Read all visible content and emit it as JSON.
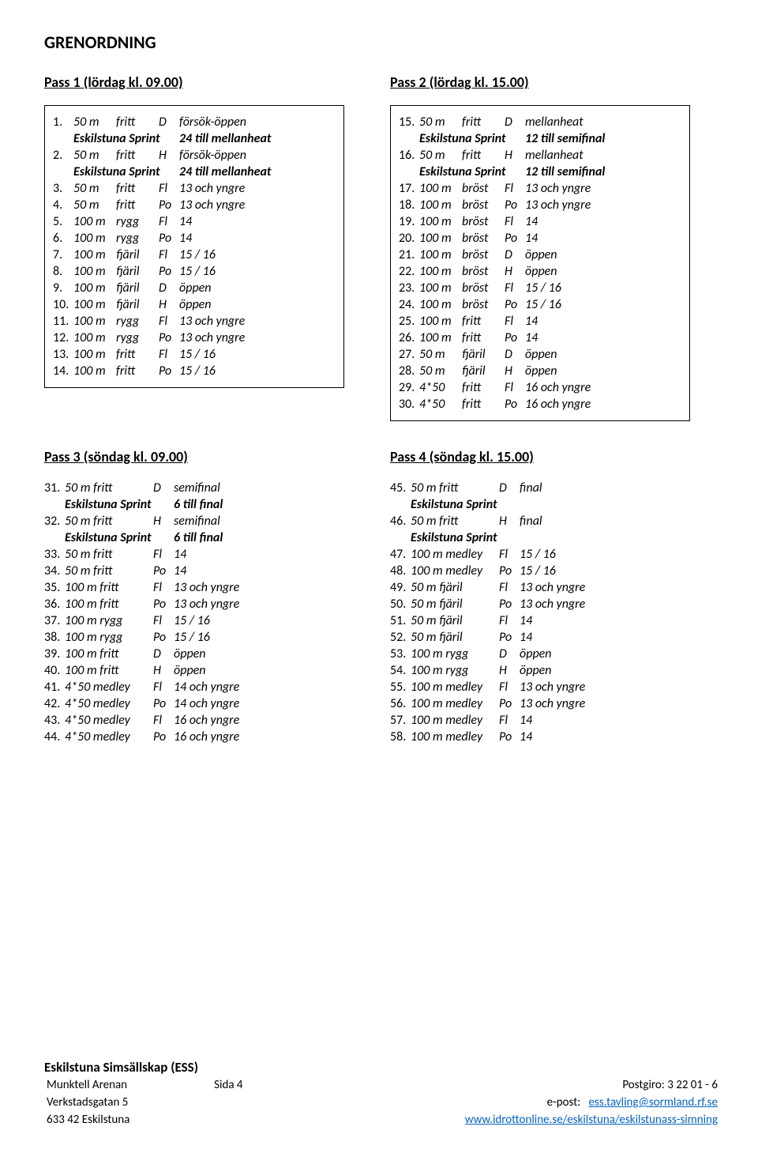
{
  "title": "GRENORDNING",
  "pass1_heading": "Pass 1 (lördag kl. 09.00)",
  "pass2_heading": "Pass 2 (lördag kl. 15.00)",
  "pass3_heading": "Pass 3 (söndag kl. 09.00)",
  "pass4_heading": "Pass 4 (söndag kl. 15.00)",
  "pass1": [
    {
      "n": "1.",
      "d": "50 m",
      "s": "fritt",
      "c": "D",
      "i": "försök-öppen"
    },
    {
      "sprint": true,
      "label": "Eskilstuna Sprint",
      "note": "24 till mellanheat"
    },
    {
      "n": "2.",
      "d": "50 m",
      "s": "fritt",
      "c": "H",
      "i": "försök-öppen"
    },
    {
      "sprint": true,
      "label": "Eskilstuna Sprint",
      "note": "24 till mellanheat"
    },
    {
      "n": "3.",
      "d": "50 m",
      "s": "fritt",
      "c": "Fl",
      "i": "13 och yngre"
    },
    {
      "n": "4.",
      "d": "50 m",
      "s": "fritt",
      "c": "Po",
      "i": "13 och yngre"
    },
    {
      "n": "5.",
      "d": "100 m",
      "s": "rygg",
      "c": "Fl",
      "i": "14"
    },
    {
      "n": "6.",
      "d": "100 m",
      "s": "rygg",
      "c": "Po",
      "i": "14"
    },
    {
      "n": "7.",
      "d": "100 m",
      "s": "fjäril",
      "c": " Fl",
      "i": "15 / 16"
    },
    {
      "n": "8.",
      "d": "100 m",
      "s": "fjäril",
      "c": "Po",
      "i": "15 / 16"
    },
    {
      "n": "9.",
      "d": "100 m",
      "s": "fjäril",
      "c": "D",
      "i": "öppen"
    },
    {
      "n": "10.",
      "d": "100 m",
      "s": "fjäril",
      "c": "H",
      "i": "öppen"
    },
    {
      "n": "11.",
      "d": "100 m",
      "s": "rygg",
      "c": "Fl",
      "i": "13 och yngre"
    },
    {
      "n": "12.",
      "d": "100 m",
      "s": "rygg",
      "c": "Po",
      "i": "13 och yngre"
    },
    {
      "n": "13.",
      "d": "100 m",
      "s": "fritt",
      "c": "Fl",
      "i": "15 / 16"
    },
    {
      "n": "14.",
      "d": "100 m",
      "s": "fritt",
      "c": "Po",
      "i": "15 / 16"
    }
  ],
  "pass2": [
    {
      "n": "15.",
      "d": "50 m",
      "s": "fritt",
      "c": "D",
      "i": "mellanheat"
    },
    {
      "sprint": true,
      "label": "Eskilstuna Sprint",
      "note": "12 till semifinal"
    },
    {
      "n": "16.",
      "d": "50 m",
      "s": "fritt",
      "c": "H",
      "i": "mellanheat"
    },
    {
      "sprint": true,
      "label": "Eskilstuna Sprint",
      "note": "12 till semifinal"
    },
    {
      "n": "17.",
      "d": "100 m",
      "s": "bröst",
      "c": "Fl",
      "i": "13 och yngre"
    },
    {
      "n": "18.",
      "d": "100 m",
      "s": "bröst",
      "c": "Po",
      "i": "13 och yngre"
    },
    {
      "n": "19.",
      "d": "100 m",
      "s": "bröst",
      "c": "Fl",
      "i": "14"
    },
    {
      "n": "20.",
      "d": "100 m",
      "s": "bröst",
      "c": "Po",
      "i": "14"
    },
    {
      "n": "21.",
      "d": "100 m",
      "s": "bröst",
      "c": "D",
      "i": "öppen"
    },
    {
      "n": "22.",
      "d": "100 m",
      "s": "bröst",
      "c": "H",
      "i": "öppen"
    },
    {
      "n": "23.",
      "d": "100 m",
      "s": "bröst",
      "c": "Fl",
      "i": "15 / 16"
    },
    {
      "n": "24.",
      "d": "100 m",
      "s": "bröst",
      "c": "Po",
      "i": "15 / 16"
    },
    {
      "n": "25.",
      "d": "100 m",
      "s": "fritt",
      "c": "Fl",
      "i": "14"
    },
    {
      "n": "26.",
      "d": "100 m",
      "s": "fritt",
      "c": "Po",
      "i": "14"
    },
    {
      "n": "27.",
      "d": "50 m",
      "s": "fjäril",
      "c": "D",
      "i": "öppen"
    },
    {
      "n": "28.",
      "d": "50 m",
      "s": "fjäril",
      "c": "H",
      "i": "öppen"
    },
    {
      "n": "29.",
      "d": "4*50",
      "s": "fritt",
      "c": "Fl",
      "i": "16 och yngre"
    },
    {
      "n": "30.",
      "d": "4*50",
      "s": "fritt",
      "c": "Po",
      "i": "16 och yngre"
    }
  ],
  "pass3": [
    {
      "n": "31.",
      "d": "50 m fritt",
      "c": "D",
      "i": "semifinal"
    },
    {
      "sprint": true,
      "label": "Eskilstuna Sprint",
      "note": "6 till final"
    },
    {
      "n": "32.",
      "d": "50 m fritt",
      "c": "H",
      "i": "semifinal"
    },
    {
      "sprint": true,
      "label": "Eskilstuna Sprint",
      "note": "6 till final"
    },
    {
      "n": "33.",
      "d": "50 m fritt",
      "c": "Fl",
      "i": "14"
    },
    {
      "n": "34.",
      "d": "50 m fritt",
      "c": "Po",
      "i": "14"
    },
    {
      "n": "35.",
      "d": "100 m fritt",
      "c": "Fl",
      "i": "13 och yngre"
    },
    {
      "n": "36.",
      "d": "100 m fritt",
      "c": "Po",
      "i": "13 och yngre"
    },
    {
      "n": "37.",
      "d": "100 m rygg",
      "c": "Fl",
      "i": "15 / 16"
    },
    {
      "n": "38.",
      "d": "100 m rygg",
      "c": "Po",
      "i": "15 / 16"
    },
    {
      "n": "39.",
      "d": "100 m fritt",
      "c": "D",
      "i": "öppen"
    },
    {
      "n": "40.",
      "d": "100 m fritt",
      "c": "H",
      "i": "öppen"
    },
    {
      "n": "41.",
      "d": "4*50 medley",
      "c": "Fl",
      "i": "14 och yngre"
    },
    {
      "n": "42.",
      "d": "4*50 medley",
      "c": "Po",
      "i": "14 och yngre"
    },
    {
      "n": "43.",
      "d": "4*50 medley",
      "c": "Fl",
      "i": "16 och yngre"
    },
    {
      "n": "44.",
      "d": "4*50 medley",
      "c": "Po",
      "i": "16 och yngre"
    }
  ],
  "pass4": [
    {
      "n": "45.",
      "d": "50 m fritt",
      "c": "D",
      "i": "final"
    },
    {
      "sprint": true,
      "label": "Eskilstuna Sprint",
      "note": ""
    },
    {
      "n": "46.",
      "d": "50 m fritt",
      "c": "H",
      "i": "final"
    },
    {
      "sprint": true,
      "label": "Eskilstuna Sprint",
      "note": ""
    },
    {
      "n": "47.",
      "d": "100 m medley",
      "c": "Fl",
      "i": "15 / 16"
    },
    {
      "n": "48.",
      "d": "100 m medley",
      "c": "Po",
      "i": "15 / 16"
    },
    {
      "n": "49.",
      "d": "50 m fjäril",
      "c": "Fl",
      "i": "13 och yngre"
    },
    {
      "n": "50.",
      "d": "50 m fjäril",
      "c": "Po",
      "i": "13 och yngre"
    },
    {
      "n": "51.",
      "d": "50 m fjäril",
      "c": "Fl",
      "i": "14"
    },
    {
      "n": "52.",
      "d": "50 m fjäril",
      "c": "Po",
      "i": "14"
    },
    {
      "n": "53.",
      "d": "100 m rygg",
      "c": "D",
      "i": "öppen"
    },
    {
      "n": "54.",
      "d": "100 m rygg",
      "c": "H",
      "i": "öppen"
    },
    {
      "n": "55.",
      "d": "100 m medley",
      "c": "Fl",
      "i": "13 och yngre"
    },
    {
      "n": "56.",
      "d": "100 m medley",
      "c": "Po",
      "i": "13 och yngre"
    },
    {
      "n": "57.",
      "d": "100 m medley",
      "c": "Fl",
      "i": "14"
    },
    {
      "n": "58.",
      "d": "100 m medley",
      "c": "Po",
      "i": "14"
    }
  ],
  "footer": {
    "org": "Eskilstuna Simsällskap (ESS)",
    "addr1": "Munktell Arenan",
    "addr2": "Verkstadsgatan 5",
    "addr3": "633 42 Eskilstuna",
    "page": "Sida 4",
    "post_label": "Postgiro:",
    "post_val": "  3 22 01 - 6",
    "epost_label": "e-post:",
    "email": "ess.tavling@sormland.rf.se",
    "url": "www.idrottonline.se/eskilstuna/eskilstunass-simning"
  }
}
